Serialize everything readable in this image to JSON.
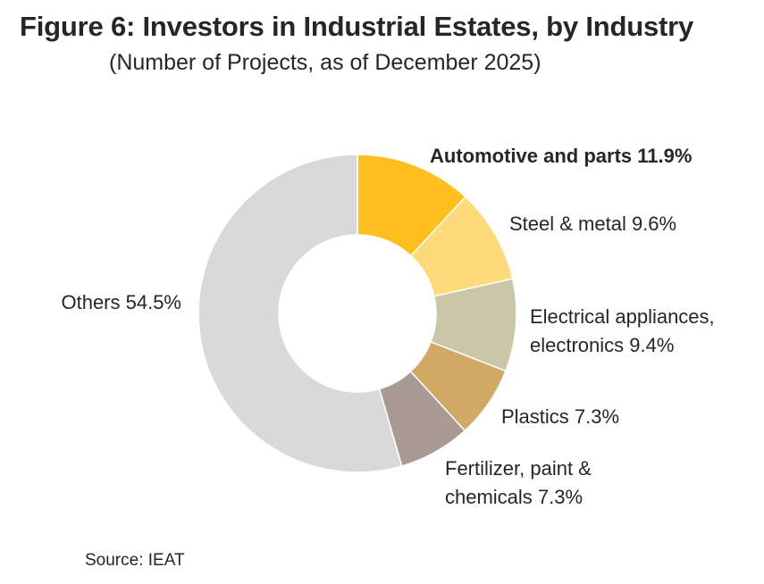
{
  "header": {
    "title": "Figure 6: Investors in Industrial Estates, by Industry",
    "subtitle": "(Number of Projects, as of December 2025)"
  },
  "footer": {
    "source": "Source: IEAT"
  },
  "colors": {
    "automotive": "#FFBF1E",
    "steel": "#FFDA7A",
    "electrical": "#CBC6A8",
    "plastics": "#D2A865",
    "fertilizer": "#A99A96",
    "others": "#D9D9D9"
  },
  "chart_data": {
    "type": "pie",
    "donut": true,
    "title": "Figure 6: Investors in Industrial Estates, by Industry",
    "subtitle": "(Number of Projects, as of December 2025)",
    "legend": "none",
    "slices": [
      {
        "name": "Automotive and parts",
        "value": 11.9,
        "label": "Automotive and parts 11.9%",
        "color": "#FFBF1E",
        "bold": true
      },
      {
        "name": "Steel & metal",
        "value": 9.6,
        "label": "Steel & metal 9.6%",
        "color": "#FFDA7A"
      },
      {
        "name": "Electrical appliances, electronics",
        "value": 9.4,
        "label": "Electrical appliances, electronics 9.4%",
        "lines": [
          "Electrical appliances,",
          "electronics 9.4%"
        ],
        "color": "#CBC6A8"
      },
      {
        "name": "Plastics",
        "value": 7.3,
        "label": "Plastics 7.3%",
        "color": "#D2A865"
      },
      {
        "name": "Fertilizer, paint & chemicals",
        "value": 7.3,
        "label": "Fertilizer, paint & chemicals 7.3%",
        "lines": [
          "Fertilizer, paint &",
          "chemicals 7.3%"
        ],
        "color": "#A99A96"
      },
      {
        "name": "Others",
        "value": 54.5,
        "label": "Others 54.5%",
        "color": "#D9D9D9"
      }
    ]
  }
}
